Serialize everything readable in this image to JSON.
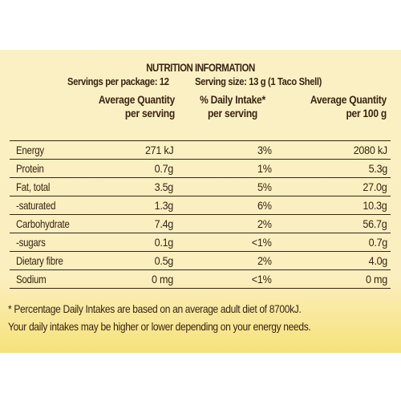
{
  "label": {
    "title": "NUTRITION INFORMATION",
    "servings_per_package": "Servings per package: 12",
    "serving_size": "Serving size: 13 g (1 Taco Shell)",
    "headers": {
      "avg_qty_line1": "Average Quantity",
      "avg_qty_line2": "per serving",
      "daily_line1": "% Daily Intake*",
      "daily_line2": "per serving",
      "per100_line1": "Average Quantity",
      "per100_line2": "per 100 g"
    },
    "rows": [
      {
        "name": "Energy",
        "per_serving": "271 kJ",
        "daily": "3%",
        "per100": "2080 kJ"
      },
      {
        "name": "Protein",
        "per_serving": "0.7g",
        "daily": "1%",
        "per100": "5.3g"
      },
      {
        "name": "Fat, total",
        "per_serving": "3.5g",
        "daily": "5%",
        "per100": "27.0g"
      },
      {
        "name": "-saturated",
        "per_serving": "1.3g",
        "daily": "6%",
        "per100": "10.3g"
      },
      {
        "name": "Carbohydrate",
        "per_serving": "7.4g",
        "daily": "2%",
        "per100": "56.7g"
      },
      {
        "name": "-sugars",
        "per_serving": "0.1g",
        "daily": "<1%",
        "per100": "0.7g"
      },
      {
        "name": "Dietary fibre",
        "per_serving": "0.5g",
        "daily": "2%",
        "per100": "4.0g"
      },
      {
        "name": "Sodium",
        "per_serving": "0 mg",
        "daily": "<1%",
        "per100": "0 mg"
      }
    ],
    "footnote_line1": "* Percentage Daily Intakes are based on an average adult diet of 8700kJ.",
    "footnote_line2": "Your daily intakes may be higher or lower depending on your energy needs."
  }
}
